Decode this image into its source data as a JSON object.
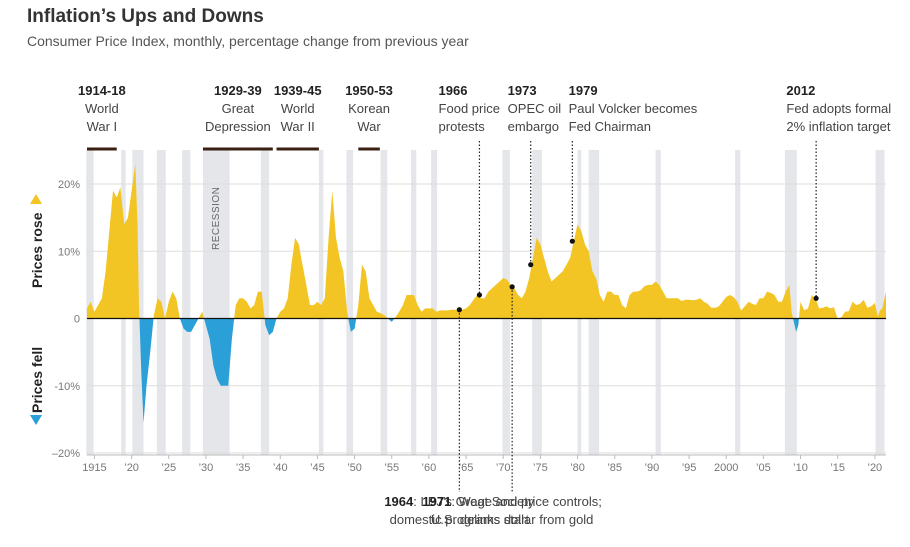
{
  "header": {
    "title": "Inflation’s Ups and Downs",
    "subtitle": "Consumer Price Index, monthly, percentage change from previous year"
  },
  "labels": {
    "prices_rose": "Prices rose",
    "prices_fell": "Prices fell",
    "recession": "RECESSION"
  },
  "colors": {
    "positive": "#f2c524",
    "negative": "#2b9fd8",
    "recession": "#e4e6ea",
    "grid": "#dddddd",
    "bar": "#3a1f12"
  },
  "chart_data": {
    "type": "area",
    "title": "Inflation’s Ups and Downs",
    "subtitle": "Consumer Price Index, monthly, percentage change from previous year",
    "xlabel": "",
    "ylabel": "",
    "xlim": [
      1914,
      2021.5
    ],
    "ylim": [
      -20,
      25
    ],
    "grid": true,
    "y_ticks": [
      {
        "value": 20,
        "label": "20%"
      },
      {
        "value": 10,
        "label": "10%"
      },
      {
        "value": 0,
        "label": "0"
      },
      {
        "value": -10,
        "label": "-10%"
      },
      {
        "value": -20,
        "label": "–20%"
      }
    ],
    "x_ticks": [
      {
        "value": 1915,
        "label": "1915"
      },
      {
        "value": 1920,
        "label": "’20"
      },
      {
        "value": 1925,
        "label": "’25"
      },
      {
        "value": 1930,
        "label": "’30"
      },
      {
        "value": 1935,
        "label": "’35"
      },
      {
        "value": 1940,
        "label": "’40"
      },
      {
        "value": 1945,
        "label": "’45"
      },
      {
        "value": 1950,
        "label": "’50"
      },
      {
        "value": 1955,
        "label": "’55"
      },
      {
        "value": 1960,
        "label": "’60"
      },
      {
        "value": 1965,
        "label": "’65"
      },
      {
        "value": 1970,
        "label": "’70"
      },
      {
        "value": 1975,
        "label": "’75"
      },
      {
        "value": 1980,
        "label": "’80"
      },
      {
        "value": 1985,
        "label": "’85"
      },
      {
        "value": 1990,
        "label": "’90"
      },
      {
        "value": 1995,
        "label": "’95"
      },
      {
        "value": 2000,
        "label": "2000"
      },
      {
        "value": 2005,
        "label": "’05"
      },
      {
        "value": 2010,
        "label": "’10"
      },
      {
        "value": 2015,
        "label": "’15"
      },
      {
        "value": 2020,
        "label": "’20"
      }
    ],
    "series": [
      {
        "points": [
          [
            1914,
            1.5
          ],
          [
            1914.5,
            2.5
          ],
          [
            1915,
            1
          ],
          [
            1915.5,
            2
          ],
          [
            1916,
            3
          ],
          [
            1916.5,
            7
          ],
          [
            1917,
            13
          ],
          [
            1917.5,
            19
          ],
          [
            1918,
            18
          ],
          [
            1918.5,
            19.5
          ],
          [
            1919,
            14
          ],
          [
            1919.5,
            15
          ],
          [
            1920,
            19
          ],
          [
            1920.5,
            23
          ],
          [
            1920.8,
            14
          ],
          [
            1921,
            2
          ],
          [
            1921.3,
            -8
          ],
          [
            1921.6,
            -15.5
          ],
          [
            1922,
            -10
          ],
          [
            1922.5,
            -5
          ],
          [
            1923,
            0.5
          ],
          [
            1923.5,
            3
          ],
          [
            1924,
            2.5
          ],
          [
            1924.5,
            0
          ],
          [
            1925,
            2.5
          ],
          [
            1925.5,
            4
          ],
          [
            1926,
            3
          ],
          [
            1926.5,
            0
          ],
          [
            1927,
            -1.5
          ],
          [
            1927.5,
            -2
          ],
          [
            1928,
            -2
          ],
          [
            1928.5,
            -1
          ],
          [
            1929,
            0
          ],
          [
            1929.5,
            1
          ],
          [
            1930,
            -1
          ],
          [
            1930.5,
            -3
          ],
          [
            1931,
            -7
          ],
          [
            1931.5,
            -9
          ],
          [
            1932,
            -10
          ],
          [
            1932.5,
            -10
          ],
          [
            1933,
            -10
          ],
          [
            1933.5,
            -3
          ],
          [
            1934,
            2
          ],
          [
            1934.5,
            3
          ],
          [
            1935,
            3
          ],
          [
            1935.5,
            2.5
          ],
          [
            1936,
            1.5
          ],
          [
            1936.5,
            2
          ],
          [
            1937,
            4
          ],
          [
            1937.5,
            4
          ],
          [
            1938,
            -1
          ],
          [
            1938.5,
            -2.5
          ],
          [
            1939,
            -2
          ],
          [
            1939.5,
            0
          ],
          [
            1940,
            1
          ],
          [
            1940.5,
            1.5
          ],
          [
            1941,
            3
          ],
          [
            1941.5,
            8
          ],
          [
            1942,
            12
          ],
          [
            1942.5,
            11
          ],
          [
            1943,
            8
          ],
          [
            1943.5,
            5
          ],
          [
            1944,
            2
          ],
          [
            1944.5,
            2
          ],
          [
            1945,
            2.5
          ],
          [
            1945.5,
            2
          ],
          [
            1946,
            3
          ],
          [
            1946.5,
            12
          ],
          [
            1947,
            19
          ],
          [
            1947.5,
            12
          ],
          [
            1948,
            9
          ],
          [
            1948.5,
            7
          ],
          [
            1949,
            1
          ],
          [
            1949.5,
            -2
          ],
          [
            1950,
            -1.5
          ],
          [
            1950.5,
            2
          ],
          [
            1951,
            8
          ],
          [
            1951.5,
            7
          ],
          [
            1952,
            3
          ],
          [
            1952.5,
            2
          ],
          [
            1953,
            1
          ],
          [
            1953.5,
            0.8
          ],
          [
            1954,
            0.5
          ],
          [
            1954.5,
            0
          ],
          [
            1955,
            -0.5
          ],
          [
            1955.5,
            0.2
          ],
          [
            1956,
            1
          ],
          [
            1956.5,
            2
          ],
          [
            1957,
            3.5
          ],
          [
            1957.5,
            3.5
          ],
          [
            1958,
            3.5
          ],
          [
            1958.5,
            2
          ],
          [
            1959,
            1
          ],
          [
            1959.5,
            1.5
          ],
          [
            1960,
            1.5
          ],
          [
            1960.5,
            1.5
          ],
          [
            1961,
            1
          ],
          [
            1961.5,
            1.2
          ],
          [
            1962,
            1.2
          ],
          [
            1962.5,
            1.2
          ],
          [
            1963,
            1.3
          ],
          [
            1963.5,
            1.3
          ],
          [
            1964,
            1.3
          ],
          [
            1964.5,
            1.3
          ],
          [
            1965,
            1.5
          ],
          [
            1965.5,
            2
          ],
          [
            1966,
            2.8
          ],
          [
            1966.5,
            3.5
          ],
          [
            1967,
            3
          ],
          [
            1967.5,
            3
          ],
          [
            1968,
            4
          ],
          [
            1968.5,
            4.5
          ],
          [
            1969,
            5
          ],
          [
            1969.5,
            5.5
          ],
          [
            1970,
            6
          ],
          [
            1970.5,
            5.8
          ],
          [
            1971,
            5
          ],
          [
            1971.5,
            4.5
          ],
          [
            1972,
            3.5
          ],
          [
            1972.5,
            3
          ],
          [
            1973,
            4
          ],
          [
            1973.5,
            6
          ],
          [
            1974,
            9
          ],
          [
            1974.5,
            12
          ],
          [
            1975,
            11
          ],
          [
            1975.5,
            9
          ],
          [
            1976,
            7
          ],
          [
            1976.5,
            5.5
          ],
          [
            1977,
            6
          ],
          [
            1977.5,
            6.5
          ],
          [
            1978,
            7
          ],
          [
            1978.5,
            8
          ],
          [
            1979,
            9
          ],
          [
            1979.5,
            11.5
          ],
          [
            1980,
            14
          ],
          [
            1980.5,
            13
          ],
          [
            1981,
            11
          ],
          [
            1981.5,
            10
          ],
          [
            1982,
            7
          ],
          [
            1982.5,
            6
          ],
          [
            1983,
            3.5
          ],
          [
            1983.5,
            2.5
          ],
          [
            1984,
            4
          ],
          [
            1984.5,
            4
          ],
          [
            1985,
            3.5
          ],
          [
            1985.5,
            3.5
          ],
          [
            1986,
            2
          ],
          [
            1986.5,
            1.5
          ],
          [
            1987,
            3.5
          ],
          [
            1987.5,
            4
          ],
          [
            1988,
            4
          ],
          [
            1988.5,
            4.2
          ],
          [
            1989,
            4.8
          ],
          [
            1989.5,
            5
          ],
          [
            1990,
            5
          ],
          [
            1990.5,
            5.5
          ],
          [
            1991,
            5
          ],
          [
            1991.5,
            4
          ],
          [
            1992,
            3
          ],
          [
            1992.5,
            3
          ],
          [
            1993,
            3
          ],
          [
            1993.5,
            3
          ],
          [
            1994,
            2.6
          ],
          [
            1994.5,
            2.8
          ],
          [
            1995,
            2.8
          ],
          [
            1995.5,
            2.7
          ],
          [
            1996,
            2.8
          ],
          [
            1996.5,
            3
          ],
          [
            1997,
            2.5
          ],
          [
            1997.5,
            2.2
          ],
          [
            1998,
            1.6
          ],
          [
            1998.5,
            1.6
          ],
          [
            1999,
            1.8
          ],
          [
            1999.5,
            2.5
          ],
          [
            2000,
            3.2
          ],
          [
            2000.5,
            3.5
          ],
          [
            2001,
            3.2
          ],
          [
            2001.5,
            2.5
          ],
          [
            2002,
            1.2
          ],
          [
            2002.5,
            1.8
          ],
          [
            2003,
            2.5
          ],
          [
            2003.5,
            2.2
          ],
          [
            2004,
            2
          ],
          [
            2004.5,
            3
          ],
          [
            2005,
            3
          ],
          [
            2005.5,
            4
          ],
          [
            2006,
            3.8
          ],
          [
            2006.5,
            3.5
          ],
          [
            2007,
            2.5
          ],
          [
            2007.5,
            2.5
          ],
          [
            2008,
            4
          ],
          [
            2008.5,
            5
          ],
          [
            2008.8,
            1
          ],
          [
            2009,
            0
          ],
          [
            2009.4,
            -2
          ],
          [
            2009.7,
            -1
          ],
          [
            2010,
            2.5
          ],
          [
            2010.5,
            1.2
          ],
          [
            2011,
            1.5
          ],
          [
            2011.5,
            3.5
          ],
          [
            2012,
            3
          ],
          [
            2012.5,
            1.5
          ],
          [
            2013,
            1.6
          ],
          [
            2013.5,
            1.8
          ],
          [
            2014,
            1.5
          ],
          [
            2014.5,
            1.7
          ],
          [
            2015,
            -0.1
          ],
          [
            2015.5,
            0.2
          ],
          [
            2016,
            1
          ],
          [
            2016.5,
            1.1
          ],
          [
            2017,
            2.5
          ],
          [
            2017.5,
            2
          ],
          [
            2018,
            2.2
          ],
          [
            2018.5,
            2.8
          ],
          [
            2019,
            1.6
          ],
          [
            2019.5,
            1.8
          ],
          [
            2020,
            2.3
          ],
          [
            2020.4,
            0.3
          ],
          [
            2020.7,
            1.2
          ],
          [
            2021,
            1.5
          ],
          [
            2021.3,
            3
          ],
          [
            2021.5,
            4
          ]
        ]
      }
    ],
    "recessions": [
      [
        1913.9,
        1914.9
      ],
      [
        1918.6,
        1919.2
      ],
      [
        1920.1,
        1921.6
      ],
      [
        1923.4,
        1924.6
      ],
      [
        1926.8,
        1927.9
      ],
      [
        1929.6,
        1933.2
      ],
      [
        1937.4,
        1938.5
      ],
      [
        1945.2,
        1945.8
      ],
      [
        1948.9,
        1949.8
      ],
      [
        1953.5,
        1954.4
      ],
      [
        1957.6,
        1958.3
      ],
      [
        1960.3,
        1961.1
      ],
      [
        1969.9,
        1970.9
      ],
      [
        1973.9,
        1975.2
      ],
      [
        1980,
        1980.5
      ],
      [
        1981.5,
        1982.9
      ],
      [
        1990.5,
        1991.2
      ],
      [
        2001.2,
        2001.9
      ],
      [
        2007.9,
        2009.5
      ],
      [
        2020.1,
        2021.3
      ]
    ],
    "events_top": [
      {
        "year_label": "1914-18",
        "lines": [
          "World",
          "War I"
        ],
        "range": [
          1914,
          1918
        ],
        "align": "middle",
        "label_x": 1914.7
      },
      {
        "year_label": "1929-39",
        "lines": [
          "Great",
          "Depression"
        ],
        "range": [
          1929.6,
          1939
        ],
        "align": "middle",
        "label_x": 1934.3
      },
      {
        "year_label": "1939-45",
        "lines": [
          "World",
          "War II"
        ],
        "range": [
          1939.5,
          1945.2
        ],
        "align": "middle",
        "label_x": 1942.3
      },
      {
        "year_label": "1950-53",
        "lines": [
          "Korean",
          "War"
        ],
        "range": [
          1950.5,
          1953.4
        ],
        "align": "middle",
        "label_x": 1951.9
      },
      {
        "year_label": "1966",
        "lines": [
          "Food price",
          "protests"
        ],
        "point": [
          1966.8,
          3.5
        ],
        "align": "start",
        "label_x": 1961.3
      },
      {
        "year_label": "1973",
        "lines": [
          "OPEC oil",
          "embargo"
        ],
        "point": [
          1973.7,
          8
        ],
        "align": "start",
        "label_x": 1970.6
      },
      {
        "year_label": "1979",
        "lines": [
          "Paul Volcker becomes",
          "Fed Chairman"
        ],
        "point": [
          1979.3,
          11.5
        ],
        "align": "start",
        "label_x": 1978.8
      },
      {
        "year_label": "2012",
        "lines": [
          "Fed adopts formal",
          "2% inflation target"
        ],
        "point": [
          2012.1,
          3
        ],
        "align": "start",
        "label_x": 2008.1
      }
    ],
    "events_bottom": [
      {
        "year_label": "1964",
        "lines": [
          ": LBJ’s Great Society",
          "domestic programs start"
        ],
        "point": [
          1964.1,
          1.3
        ],
        "label_x": 1964.1
      },
      {
        "year_label": "1971",
        "lines": [
          ": Wage and price controls;",
          "U.S. delinks dollar from gold"
        ],
        "point": [
          1971.2,
          4.7
        ],
        "label_x": 1971.2
      }
    ]
  }
}
